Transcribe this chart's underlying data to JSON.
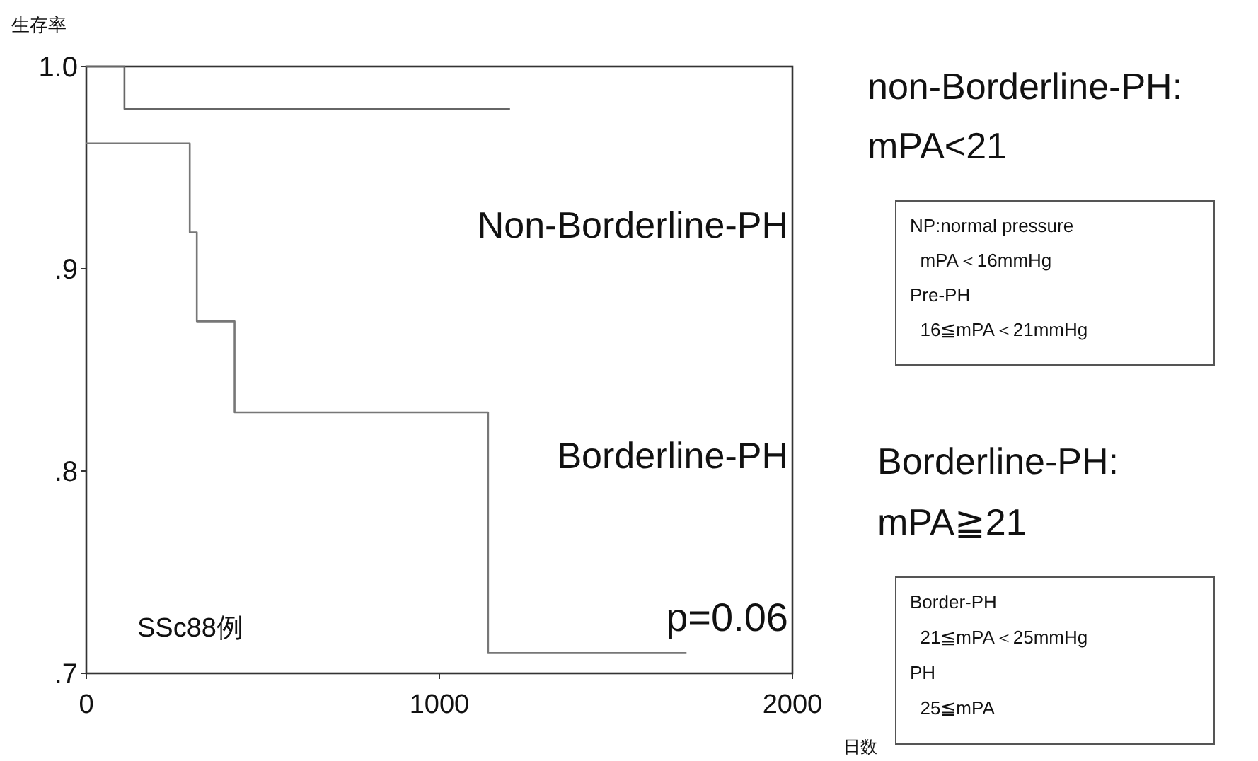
{
  "chart_data": {
    "type": "step",
    "ylabel": "生存率",
    "xlabel": "日数",
    "xlim": [
      0,
      2000
    ],
    "xticks": [
      0,
      1000,
      2000
    ],
    "ylim": [
      0.7,
      1.0
    ],
    "yticks": [
      {
        "value": 1.0,
        "label": "1.0"
      },
      {
        "value": 0.9,
        "label": ".9"
      },
      {
        "value": 0.8,
        "label": ".8"
      },
      {
        "value": 0.7,
        "label": ".7"
      }
    ],
    "grid": false,
    "legend": false,
    "line_style": "solid",
    "series": [
      {
        "name": "Non-Borderline-PH",
        "color": "#666666",
        "x": [
          0,
          108,
          1200
        ],
        "values": [
          1.0,
          0.979,
          0.979
        ]
      },
      {
        "name": "Borderline-PH",
        "color": "#777777",
        "x": [
          0,
          293,
          313,
          420,
          1138,
          1700
        ],
        "values": [
          0.962,
          0.918,
          0.874,
          0.829,
          0.71,
          0.71
        ]
      }
    ],
    "annotations": [
      "p=0.06",
      "SSc88例",
      "non-Borderline-PH:\nmPA<21",
      "NP:normal pressure\n  mPA＜16mmHg\nPre-PH\n  16≦mPA＜21mmHg",
      "Borderline-PH:\nmPA≧21",
      "Border-PH\n  21≦mPA＜25mmHg\nPH\n  25≦mPA"
    ]
  }
}
